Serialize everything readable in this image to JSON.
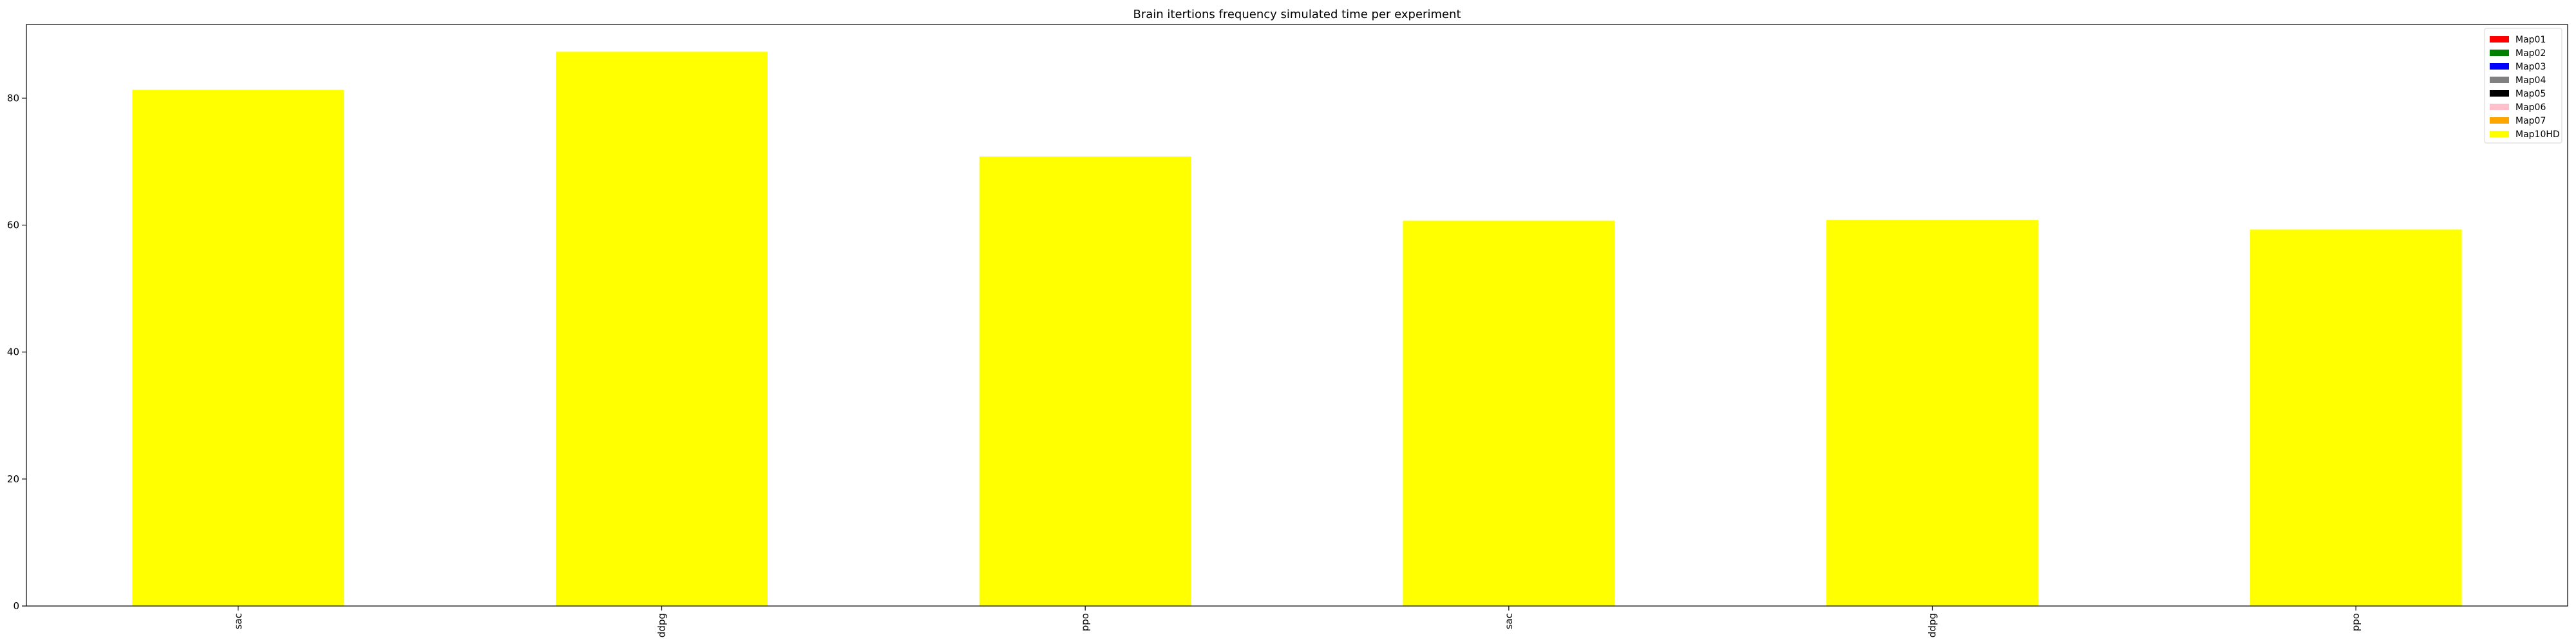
{
  "chart_data": {
    "type": "bar",
    "title": "Brain itertions frequency simulated time per experiment",
    "xlabel": "",
    "ylabel": "",
    "categories": [
      "sac",
      "ddpg",
      "ppo",
      "sac",
      "ddpg",
      "ppo"
    ],
    "series": [
      {
        "name": "Map01",
        "color": "#ff0000",
        "values": [
          0,
          0,
          0,
          0,
          0,
          0
        ]
      },
      {
        "name": "Map02",
        "color": "#008000",
        "values": [
          0,
          0,
          0,
          0,
          0,
          0
        ]
      },
      {
        "name": "Map03",
        "color": "#0000ff",
        "values": [
          0,
          0,
          0,
          0,
          0,
          0
        ]
      },
      {
        "name": "Map04",
        "color": "#808080",
        "values": [
          0,
          0,
          0,
          0,
          0,
          0
        ]
      },
      {
        "name": "Map05",
        "color": "#000000",
        "values": [
          0,
          0,
          0,
          0,
          0,
          0
        ]
      },
      {
        "name": "Map06",
        "color": "#ffc0cb",
        "values": [
          0,
          0,
          0,
          0,
          0,
          0
        ]
      },
      {
        "name": "Map07",
        "color": "#ffa500",
        "values": [
          0,
          0,
          0,
          0,
          0,
          0
        ]
      },
      {
        "name": "Map10HD",
        "color": "#ffff00",
        "values": [
          81.3,
          87.3,
          70.8,
          60.7,
          60.8,
          59.3
        ]
      }
    ],
    "ylim": [
      0,
      91.6
    ],
    "yticks": [
      0,
      20,
      40,
      60,
      80
    ],
    "grid": false,
    "legend_position": "top-right"
  }
}
